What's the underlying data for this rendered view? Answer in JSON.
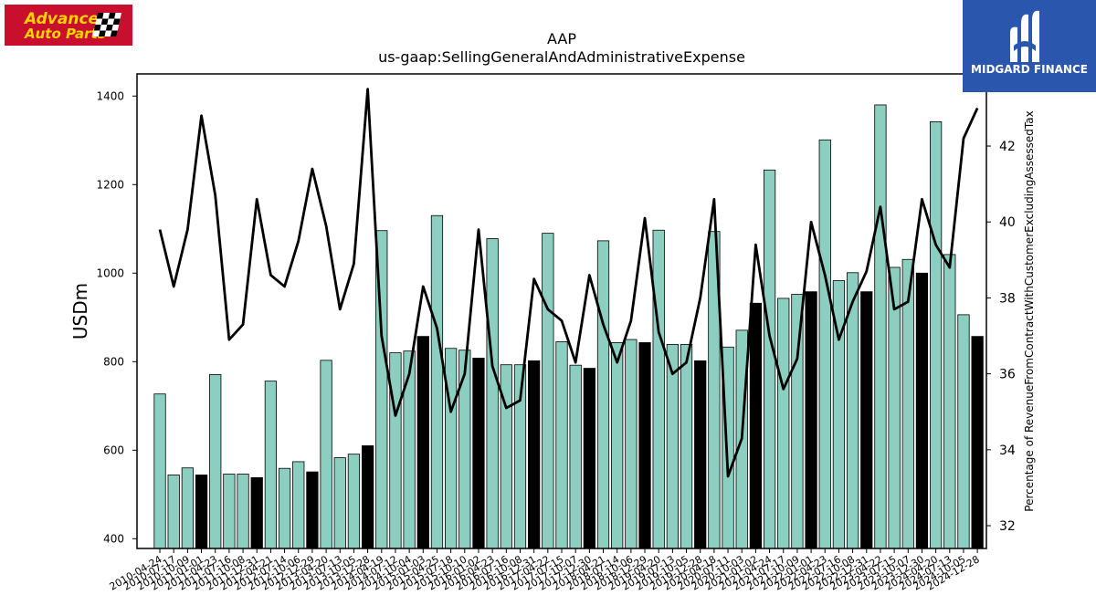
{
  "brand": {
    "left_logo_text_line1": "Advance",
    "left_logo_text_line2": "Auto Parts",
    "left_logo_color": "#c8102e",
    "right_logo_text": "MIDGARD FINANCE",
    "right_logo_color": "#2a57ad"
  },
  "chart_data": {
    "type": "bar",
    "title": "AAP",
    "subtitle": "us-gaap:SellingGeneralAndAdministrativeExpense",
    "ylabel": "USDm",
    "y2label": "Percentage of RevenueFromContractWithCustomerExcludingAssessedTax",
    "ylim": [
      378,
      1450
    ],
    "y2lim": [
      31.4,
      43.9
    ],
    "yticks": [
      400,
      600,
      800,
      1000,
      1200,
      1400
    ],
    "y2ticks": [
      32,
      34,
      36,
      38,
      40,
      42
    ],
    "bar_color": "#8ccfc1",
    "highlight_color": "#000000",
    "line_color": "#000000",
    "x_tick_labels": [
      "2010-04-24",
      "2010-07-17",
      "2010-10-09",
      "2011-01-01",
      "2011-04-23",
      "2011-07-16",
      "2011-10-08",
      "2011-12-31",
      "2012-04-21",
      "2012-07-14",
      "2012-10-06",
      "2012-12-29",
      "2013-04-20",
      "2013-07-13",
      "2013-10-05",
      "2013-12-28",
      "2014-04-19",
      "2014-07-12",
      "2014-10-04",
      "2015-01-03",
      "2015-04-25",
      "2015-07-18",
      "2015-10-10",
      "2016-01-02",
      "2016-04-23",
      "2016-07-16",
      "2016-10-08",
      "2016-12-31",
      "2017-04-22",
      "2017-07-15",
      "2017-10-07",
      "2017-12-30",
      "2018-04-21",
      "2018-07-14",
      "2018-10-06",
      "2018-12-29",
      "2019-04-20",
      "2019-07-13",
      "2019-10-05",
      "2019-12-28",
      "2020-04-18",
      "2020-07-11",
      "2020-10-03",
      "2021-01-02",
      "2021-04-24",
      "2021-07-17",
      "2021-10-09",
      "2022-01-01",
      "2022-04-23",
      "2022-07-16",
      "2022-10-08",
      "2022-12-31",
      "2023-04-22",
      "2023-07-15",
      "2023-10-07",
      "2023-12-30",
      "2024-04-20",
      "2024-07-13",
      "2024-10-05",
      "2024-12-28"
    ],
    "values": [
      727,
      544,
      560,
      544,
      771,
      546,
      546,
      538,
      756,
      559,
      574,
      551,
      803,
      583,
      591,
      610,
      1096,
      820,
      824,
      857,
      1130,
      830,
      826,
      808,
      1078,
      793,
      793,
      802,
      1090,
      845,
      792,
      785,
      1073,
      843,
      850,
      843,
      1097,
      839,
      839,
      802,
      1094,
      833,
      871,
      932,
      1233,
      943,
      952,
      958,
      1301,
      983,
      1001,
      958,
      1380,
      1013,
      1031,
      1000,
      1342,
      1042,
      906,
      857
    ],
    "highlighted": [
      false,
      false,
      false,
      true,
      false,
      false,
      false,
      true,
      false,
      false,
      false,
      true,
      false,
      false,
      false,
      true,
      false,
      false,
      false,
      true,
      false,
      false,
      false,
      true,
      false,
      false,
      false,
      true,
      false,
      false,
      false,
      true,
      false,
      false,
      false,
      true,
      false,
      false,
      false,
      true,
      false,
      false,
      false,
      true,
      false,
      false,
      false,
      true,
      false,
      false,
      false,
      true,
      false,
      false,
      false,
      true,
      false,
      false,
      false,
      true
    ],
    "pct_values": [
      39.8,
      38.3,
      39.8,
      42.8,
      40.7,
      36.9,
      37.3,
      40.6,
      38.6,
      38.3,
      39.5,
      41.4,
      39.9,
      37.7,
      38.9,
      43.5,
      37.0,
      34.9,
      36.0,
      38.3,
      37.2,
      35.0,
      36.0,
      39.8,
      36.2,
      35.1,
      35.3,
      38.5,
      37.7,
      37.4,
      36.3,
      38.6,
      37.3,
      36.3,
      37.4,
      40.1,
      37.1,
      36.0,
      36.3,
      38.0,
      40.6,
      33.3,
      34.3,
      39.4,
      37.0,
      35.6,
      36.4,
      40.0,
      38.6,
      36.9,
      37.9,
      38.7,
      40.4,
      37.7,
      37.9,
      40.6,
      39.4,
      38.8,
      42.2,
      43.0
    ]
  }
}
